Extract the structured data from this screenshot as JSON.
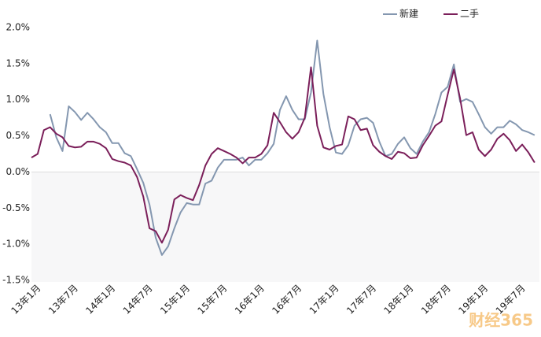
{
  "chart_data": {
    "type": "line",
    "categories": [
      "13年1月",
      null,
      null,
      null,
      null,
      null,
      "13年7月",
      null,
      null,
      null,
      null,
      null,
      "14年1月",
      null,
      null,
      null,
      null,
      null,
      "14年7月",
      null,
      null,
      null,
      null,
      null,
      "15年1月",
      null,
      null,
      null,
      null,
      null,
      "15年7月",
      null,
      null,
      null,
      null,
      null,
      "16年1月",
      null,
      null,
      null,
      null,
      null,
      "16年7月",
      null,
      null,
      null,
      null,
      null,
      "17年1月",
      null,
      null,
      null,
      null,
      null,
      "17年7月",
      null,
      null,
      null,
      null,
      null,
      "18年1月",
      null,
      null,
      null,
      null,
      null,
      "18年7月",
      null,
      null,
      null,
      null,
      null,
      "19年1月",
      null,
      null,
      null,
      null,
      null,
      "19年7月",
      null,
      null,
      null
    ],
    "series": [
      {
        "name": "新建",
        "color": "#8497b0",
        "values": [
          null,
          null,
          null,
          0.8,
          0.48,
          0.29,
          0.91,
          0.83,
          0.72,
          0.82,
          0.73,
          0.62,
          0.55,
          0.4,
          0.4,
          0.26,
          0.22,
          0.04,
          -0.15,
          -0.45,
          -0.91,
          -1.15,
          -1.03,
          -0.78,
          -0.56,
          -0.43,
          -0.45,
          -0.45,
          -0.16,
          -0.12,
          0.06,
          0.17,
          0.17,
          0.17,
          0.2,
          0.09,
          0.17,
          0.17,
          0.26,
          0.39,
          0.86,
          1.05,
          0.86,
          0.73,
          0.73,
          1.1,
          1.82,
          1.08,
          0.62,
          0.27,
          0.25,
          0.37,
          0.64,
          0.73,
          0.75,
          0.68,
          0.42,
          0.22,
          0.25,
          0.39,
          0.48,
          0.33,
          0.25,
          0.42,
          0.55,
          0.8,
          1.1,
          1.18,
          1.49,
          0.97,
          1.01,
          0.97,
          0.8,
          0.62,
          0.53,
          0.62,
          0.62,
          0.71,
          0.66,
          0.58,
          0.55,
          0.51
        ]
      },
      {
        "name": "二手",
        "color": "#7b1f5a",
        "values": [
          0.2,
          0.25,
          0.58,
          0.62,
          0.53,
          0.48,
          0.36,
          0.34,
          0.35,
          0.42,
          0.42,
          0.39,
          0.33,
          0.18,
          0.15,
          0.13,
          0.09,
          -0.07,
          -0.34,
          -0.78,
          -0.82,
          -0.98,
          -0.8,
          -0.38,
          -0.32,
          -0.36,
          -0.39,
          -0.18,
          0.09,
          0.25,
          0.33,
          0.29,
          0.25,
          0.2,
          0.12,
          0.2,
          0.2,
          0.25,
          0.37,
          0.82,
          0.69,
          0.55,
          0.46,
          0.55,
          0.75,
          1.45,
          0.64,
          0.34,
          0.31,
          0.36,
          0.38,
          0.77,
          0.73,
          0.58,
          0.6,
          0.37,
          0.28,
          0.22,
          0.18,
          0.28,
          0.26,
          0.19,
          0.2,
          0.37,
          0.5,
          0.64,
          0.7,
          1.07,
          1.42,
          1.02,
          0.51,
          0.55,
          0.31,
          0.22,
          0.31,
          0.46,
          0.53,
          0.44,
          0.29,
          0.38,
          0.27,
          0.13
        ]
      }
    ],
    "ylim": [
      -1.5,
      2.0
    ],
    "yticks": [
      {
        "value": 2.0,
        "label": "2.0%"
      },
      {
        "value": 1.5,
        "label": "1.5%"
      },
      {
        "value": 1.0,
        "label": "1.0%"
      },
      {
        "value": 0.5,
        "label": "0.5%"
      },
      {
        "value": 0,
        "label": "0.0%"
      },
      {
        "value": -0.5,
        "label": "-0.5%"
      },
      {
        "value": -1.0,
        "label": "-1.0%"
      },
      {
        "value": -1.5,
        "label": "-1.5%"
      }
    ],
    "legend": "top-right",
    "watermark": "财经365"
  }
}
